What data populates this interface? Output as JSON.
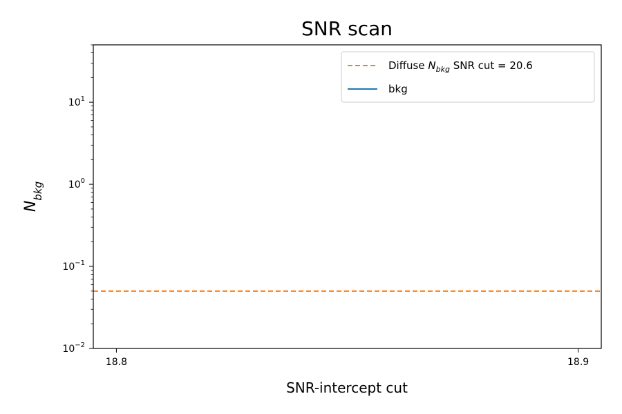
{
  "chart_data": {
    "type": "line",
    "title": "SNR scan",
    "xlabel": "SNR-intercept cut",
    "ylabel": {
      "base": "N",
      "sub": "bkg"
    },
    "xscale": "linear",
    "yscale": "log",
    "xlim": [
      18.795,
      18.905
    ],
    "ylim": [
      0.01,
      50
    ],
    "x_ticks": [
      {
        "value": 18.8,
        "label": "18.8"
      },
      {
        "value": 18.9,
        "label": "18.9"
      }
    ],
    "y_ticks": [
      {
        "value": 0.01,
        "base": "10",
        "exp": "−2"
      },
      {
        "value": 0.1,
        "base": "10",
        "exp": "−1"
      },
      {
        "value": 1,
        "base": "10",
        "exp": "0"
      },
      {
        "value": 10,
        "base": "10",
        "exp": "1"
      }
    ],
    "grid": false,
    "legend_position": "top-right",
    "series": [
      {
        "name": "Diffuse N_bkg SNR cut = 20.6",
        "legend": {
          "pre": "Diffuse ",
          "math": "N",
          "sub": "bkg",
          "post": " SNR cut = 20.6"
        },
        "kind": "hline",
        "y": 0.05,
        "color": "#ff7f0e",
        "style": "dashed"
      },
      {
        "name": "bkg",
        "legend": {
          "pre": "bkg",
          "math": "",
          "sub": "",
          "post": ""
        },
        "kind": "line",
        "x": [],
        "y": [],
        "color": "#1f77b4",
        "style": "solid"
      }
    ]
  }
}
